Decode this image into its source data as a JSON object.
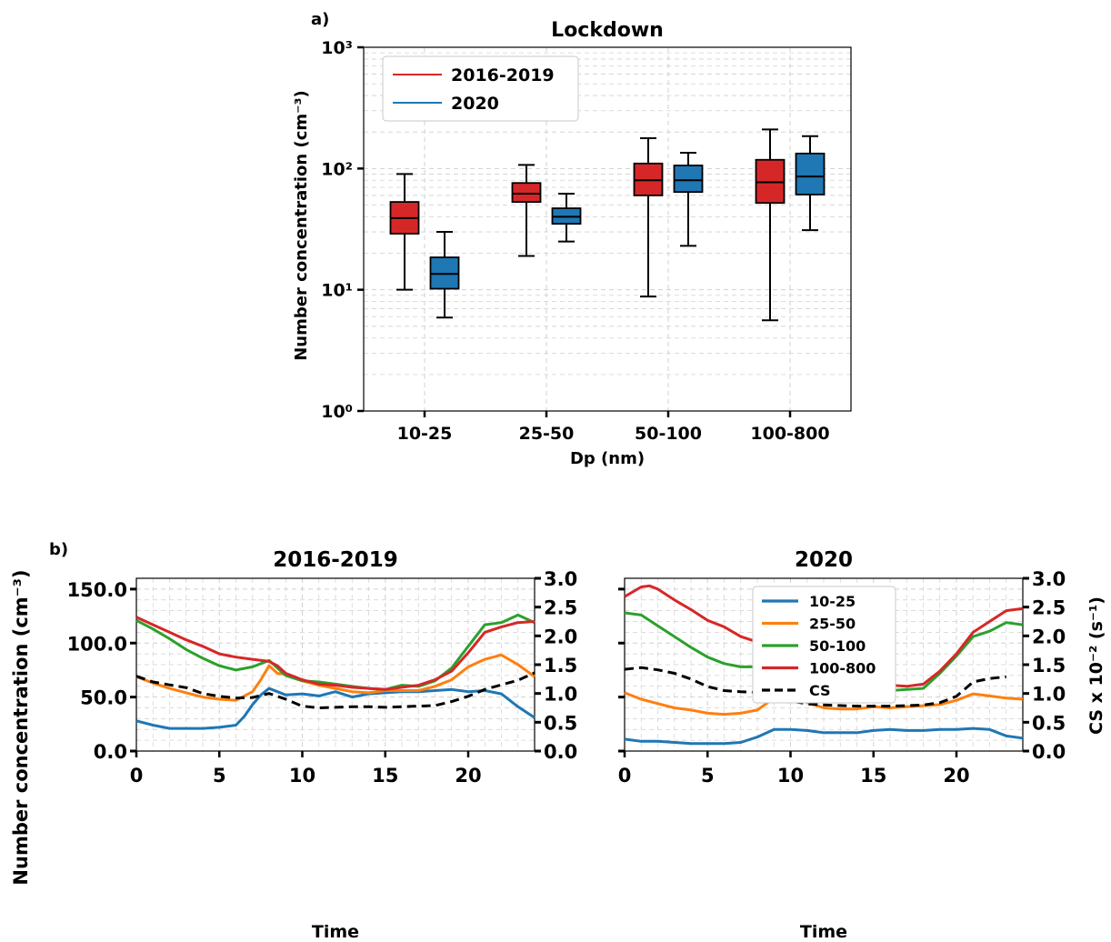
{
  "colors": {
    "red_series": "#d62728",
    "blue_series": "#1f77b4",
    "orange_series": "#ff7f0e",
    "green_series": "#2ca02c",
    "cs_line": "#000000",
    "grid": "#d0d0d0"
  },
  "chart_data": [
    {
      "panel_label": "a)",
      "type": "box",
      "title": "Lockdown",
      "xlabel": "Dp (nm)",
      "ylabel": "Number concentration (cm⁻³)",
      "yscale": "log",
      "ylim": [
        1,
        1000
      ],
      "ytick_labels": [
        "10⁰",
        "10¹",
        "10²",
        "10³"
      ],
      "grid": true,
      "legend_position": "upper-left",
      "categories": [
        "10-25",
        "25-50",
        "50-100",
        "100-800"
      ],
      "series": [
        {
          "name": "2016-2019",
          "color": "#d62728",
          "boxes": [
            {
              "whisker_low": 10,
              "q1": 29,
              "median": 39,
              "q3": 53,
              "whisker_high": 90
            },
            {
              "whisker_low": 19,
              "q1": 53,
              "median": 62,
              "q3": 76,
              "whisker_high": 107
            },
            {
              "whisker_low": 8.8,
              "q1": 60,
              "median": 80,
              "q3": 110,
              "whisker_high": 178
            },
            {
              "whisker_low": 5.6,
              "q1": 52,
              "median": 77,
              "q3": 118,
              "whisker_high": 210
            }
          ]
        },
        {
          "name": "2020",
          "color": "#1f77b4",
          "boxes": [
            {
              "whisker_low": 5.9,
              "q1": 10.2,
              "median": 13.5,
              "q3": 18.5,
              "whisker_high": 30
            },
            {
              "whisker_low": 25,
              "q1": 35,
              "median": 40,
              "q3": 47,
              "whisker_high": 62
            },
            {
              "whisker_low": 23,
              "q1": 64,
              "median": 80,
              "q3": 106,
              "whisker_high": 135
            },
            {
              "whisker_low": 31,
              "q1": 61,
              "median": 86,
              "q3": 133,
              "whisker_high": 185
            }
          ]
        }
      ]
    },
    {
      "panel_label": "b)",
      "type": "line",
      "title": "2016-2019",
      "xlabel": "Time",
      "ylabel": "Number concentration (cm⁻³)",
      "xlim": [
        0,
        24
      ],
      "ylim": [
        0,
        160
      ],
      "x_ticks": [
        0,
        5,
        10,
        15,
        20
      ],
      "y_ticks": [
        "0.0",
        "50.0",
        "100.0",
        "150.0"
      ],
      "y2lim": [
        0,
        3.0
      ],
      "y2_ticks": [
        "0.0",
        "0.5",
        "1.0",
        "1.5",
        "2.0",
        "2.5",
        "3.0"
      ],
      "grid": true,
      "series": [
        {
          "name": "10-25",
          "color": "#1f77b4",
          "x": [
            0,
            1,
            2,
            3,
            4,
            5,
            6,
            6.5,
            7,
            7.5,
            8,
            8.5,
            9,
            10,
            11,
            12,
            13,
            14,
            15,
            16,
            17,
            18,
            19,
            20,
            21,
            22,
            23,
            24
          ],
          "y": [
            28,
            24,
            21,
            21,
            21,
            22,
            24,
            32,
            43,
            52,
            58,
            55,
            52,
            53,
            51,
            55,
            50,
            53,
            54,
            55,
            55,
            56,
            57,
            55,
            56,
            53,
            41,
            31
          ]
        },
        {
          "name": "25-50",
          "color": "#ff7f0e",
          "x": [
            0,
            1,
            2,
            3,
            4,
            5,
            6,
            7,
            7.5,
            8,
            8.5,
            9,
            10,
            11,
            12,
            13,
            14,
            15,
            16,
            17,
            18,
            19,
            20,
            21,
            22,
            23,
            24
          ],
          "y": [
            69,
            63,
            58,
            54,
            50,
            48,
            47,
            55,
            66,
            79,
            72,
            71,
            65,
            61,
            58,
            55,
            54,
            56,
            56,
            56,
            60,
            66,
            78,
            85,
            89,
            80,
            69
          ]
        },
        {
          "name": "50-100",
          "color": "#2ca02c",
          "x": [
            0,
            1,
            2,
            3,
            4,
            5,
            6,
            7,
            8,
            8.5,
            9,
            10,
            11,
            12,
            13,
            14,
            15,
            16,
            17,
            18,
            19,
            20,
            21,
            22,
            23,
            24
          ],
          "y": [
            121,
            113,
            104,
            94,
            86,
            79,
            75,
            78,
            84,
            77,
            70,
            65,
            64,
            62,
            60,
            58,
            57,
            61,
            60,
            65,
            77,
            97,
            117,
            119,
            126,
            119
          ]
        },
        {
          "name": "100-800",
          "color": "#d62728",
          "x": [
            0,
            1,
            2,
            3,
            4,
            5,
            6,
            7,
            8,
            8.5,
            9,
            10,
            11,
            12,
            13,
            14,
            15,
            16,
            17,
            18,
            19,
            20,
            21,
            22,
            23,
            24
          ],
          "y": [
            124,
            117,
            110,
            103,
            97,
            90,
            87,
            85,
            83,
            79,
            72,
            66,
            62,
            61,
            59,
            58,
            57,
            59,
            61,
            66,
            74,
            91,
            110,
            115,
            119,
            120
          ]
        }
      ],
      "secondary_series": [
        {
          "name": "CS",
          "color": "#000000",
          "dashed": true,
          "x": [
            0,
            1,
            2,
            3,
            4,
            5,
            6,
            7,
            8,
            9,
            10,
            11,
            12,
            13,
            14,
            15,
            16,
            17,
            18,
            19,
            20,
            21,
            22,
            23,
            24
          ],
          "y": [
            1.3,
            1.2,
            1.15,
            1.1,
            1.0,
            0.95,
            0.92,
            0.93,
            1.0,
            0.9,
            0.78,
            0.75,
            0.76,
            0.77,
            0.77,
            0.76,
            0.77,
            0.78,
            0.79,
            0.86,
            0.95,
            1.07,
            1.15,
            1.23,
            1.36
          ]
        }
      ]
    },
    {
      "type": "line",
      "title": "2020",
      "xlabel": "Time",
      "y2label": "CS x 10⁻² (s⁻¹)",
      "xlim": [
        0,
        24
      ],
      "ylim": [
        0,
        160
      ],
      "x_ticks": [
        0,
        5,
        10,
        15,
        20
      ],
      "y2lim": [
        0,
        3.0
      ],
      "y2_ticks": [
        "0.0",
        "0.5",
        "1.0",
        "1.5",
        "2.0",
        "2.5",
        "3.0"
      ],
      "grid": true,
      "legend_position": "upper-center",
      "series": [
        {
          "name": "10-25",
          "color": "#1f77b4",
          "x": [
            0,
            1,
            2,
            3,
            4,
            5,
            6,
            7,
            8,
            9,
            10,
            11,
            12,
            13,
            14,
            15,
            16,
            17,
            18,
            19,
            20,
            21,
            22,
            23,
            24
          ],
          "y": [
            11,
            9,
            9,
            8,
            7,
            7,
            7,
            8,
            13,
            20,
            20,
            19,
            17,
            17,
            17,
            19,
            20,
            19,
            19,
            20,
            20,
            21,
            20,
            14,
            12
          ]
        },
        {
          "name": "25-50",
          "color": "#ff7f0e",
          "x": [
            0,
            1,
            2,
            3,
            4,
            5,
            6,
            7,
            8,
            9,
            10,
            11,
            12,
            13,
            14,
            15,
            16,
            17,
            18,
            19,
            20,
            21,
            22,
            23,
            24
          ],
          "y": [
            54,
            48,
            44,
            40,
            38,
            35,
            34,
            35,
            38,
            49,
            51,
            45,
            40,
            39,
            39,
            41,
            40,
            41,
            42,
            43,
            47,
            53,
            51,
            49,
            48
          ]
        },
        {
          "name": "50-100",
          "color": "#2ca02c",
          "x": [
            0,
            1,
            2,
            3,
            4,
            5,
            6,
            7,
            8,
            9,
            10,
            11,
            12,
            13,
            14,
            15,
            16,
            17,
            18,
            19,
            20,
            21,
            22,
            23,
            24
          ],
          "y": [
            128,
            126,
            116,
            106,
            96,
            87,
            81,
            78,
            78,
            80,
            68,
            63,
            59,
            57,
            56,
            56,
            56,
            57,
            58,
            72,
            88,
            106,
            111,
            119,
            117
          ]
        },
        {
          "name": "100-800",
          "color": "#d62728",
          "x": [
            0,
            1,
            1.5,
            2,
            3,
            4,
            5,
            6,
            7,
            8,
            9,
            10,
            11,
            12,
            13,
            14,
            15,
            16,
            17,
            18,
            19,
            20,
            21,
            22,
            23,
            24
          ],
          "y": [
            143,
            152,
            153,
            150,
            140,
            131,
            121,
            115,
            106,
            101,
            96,
            78,
            70,
            64,
            63,
            62,
            61,
            61,
            60,
            62,
            74,
            90,
            110,
            120,
            130,
            132
          ]
        }
      ],
      "secondary_series": [
        {
          "name": "CS",
          "color": "#000000",
          "dashed": true,
          "x": [
            0,
            1,
            2,
            3,
            4,
            5,
            6,
            7,
            8,
            9,
            10,
            11,
            12,
            13,
            14,
            15,
            16,
            17,
            18,
            19,
            20,
            21,
            22,
            23
          ],
          "y": [
            1.42,
            1.45,
            1.41,
            1.35,
            1.25,
            1.12,
            1.05,
            1.03,
            1.02,
            0.97,
            0.87,
            0.82,
            0.8,
            0.79,
            0.78,
            0.78,
            0.78,
            0.79,
            0.8,
            0.84,
            0.95,
            1.2,
            1.26,
            1.29
          ]
        }
      ]
    }
  ]
}
